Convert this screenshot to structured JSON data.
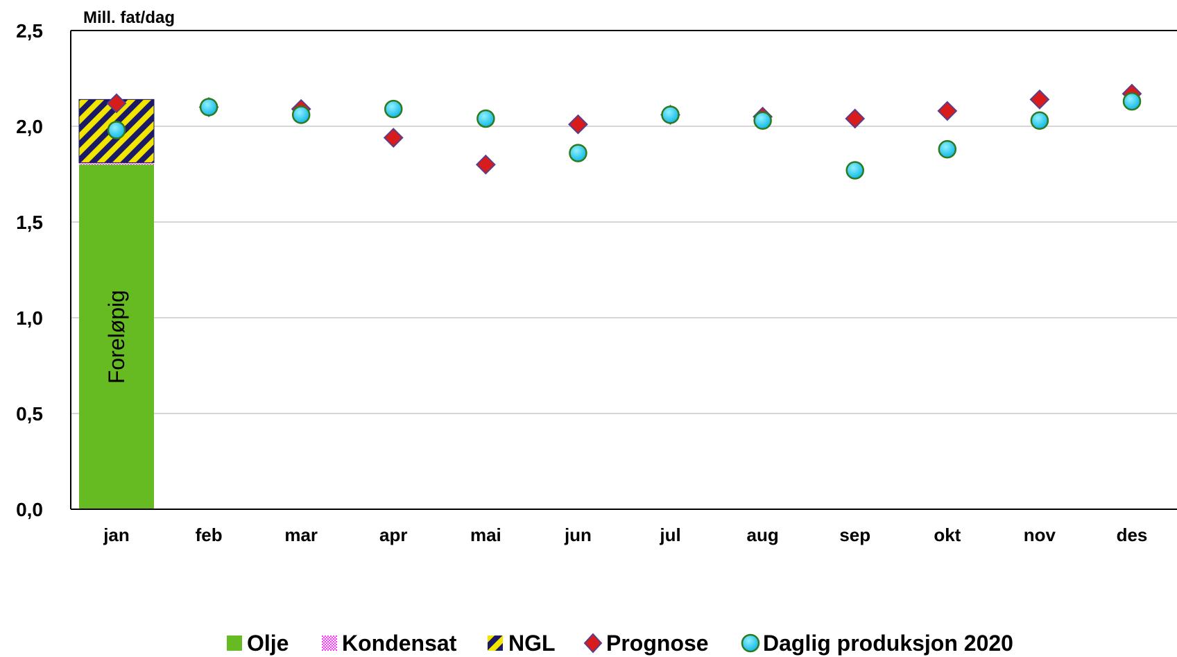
{
  "chart_data": {
    "type": "bar",
    "ylabel": "Mill. fat/dag",
    "ylim": [
      0,
      2.5
    ],
    "yticks": [
      "0,0",
      "0,5",
      "1,0",
      "1,5",
      "2,0",
      "2,5"
    ],
    "categories": [
      "jan",
      "feb",
      "mar",
      "apr",
      "mai",
      "jun",
      "jul",
      "aug",
      "sep",
      "okt",
      "nov",
      "des"
    ],
    "grid": true,
    "legend_position": "bottom",
    "bar_annotation": "Foreløpig",
    "stacked_series": [
      {
        "name": "Olje",
        "color": "#66bb22",
        "pattern": "solid",
        "values": [
          1.8,
          null,
          null,
          null,
          null,
          null,
          null,
          null,
          null,
          null,
          null,
          null
        ]
      },
      {
        "name": "Kondensat",
        "color": "#ff33ff",
        "pattern": "checker",
        "values": [
          0.01,
          null,
          null,
          null,
          null,
          null,
          null,
          null,
          null,
          null,
          null,
          null
        ]
      },
      {
        "name": "NGL",
        "color": "#f2e600",
        "pattern": "diagonal-stripes-navy",
        "values": [
          0.33,
          null,
          null,
          null,
          null,
          null,
          null,
          null,
          null,
          null,
          null,
          null
        ]
      }
    ],
    "marker_series": [
      {
        "name": "Prognose",
        "marker": "diamond",
        "color": "#d81b1b",
        "values": [
          2.12,
          2.1,
          2.09,
          1.94,
          1.8,
          2.01,
          2.06,
          2.05,
          2.04,
          2.08,
          2.14,
          2.17
        ]
      },
      {
        "name": "Daglig produksjon 2020",
        "marker": "circle",
        "color": "#1ec8f2",
        "values": [
          1.98,
          2.1,
          2.06,
          2.09,
          2.04,
          1.86,
          2.06,
          2.03,
          1.77,
          1.88,
          2.03,
          2.13
        ]
      }
    ]
  }
}
